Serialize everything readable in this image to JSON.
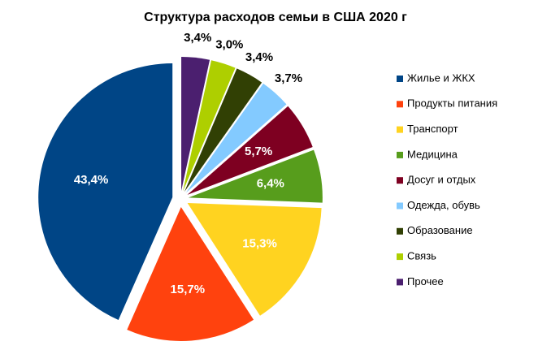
{
  "chart_data": {
    "type": "pie",
    "title": "Структура расходов семьи в США 2020 г",
    "categories": [
      "Жилье и ЖКХ",
      "Продукты питания",
      "Транспорт",
      "Медицина",
      "Досуг и отдых",
      "Одежда, обувь",
      "Образование",
      "Связь",
      "Прочее"
    ],
    "values": [
      43.4,
      15.7,
      15.3,
      6.4,
      5.7,
      3.7,
      3.4,
      3.0,
      3.4
    ],
    "value_labels": [
      "43,4%",
      "15,7%",
      "15,3%",
      "6,4%",
      "5,7%",
      "3,7%",
      "3,4%",
      "3,0%",
      "3,4%"
    ],
    "colors": [
      "#004586",
      "#ff420e",
      "#ffd320",
      "#579d1c",
      "#7e0021",
      "#83caff",
      "#314004",
      "#aecf00",
      "#4b1f6f"
    ],
    "legend": "right"
  }
}
